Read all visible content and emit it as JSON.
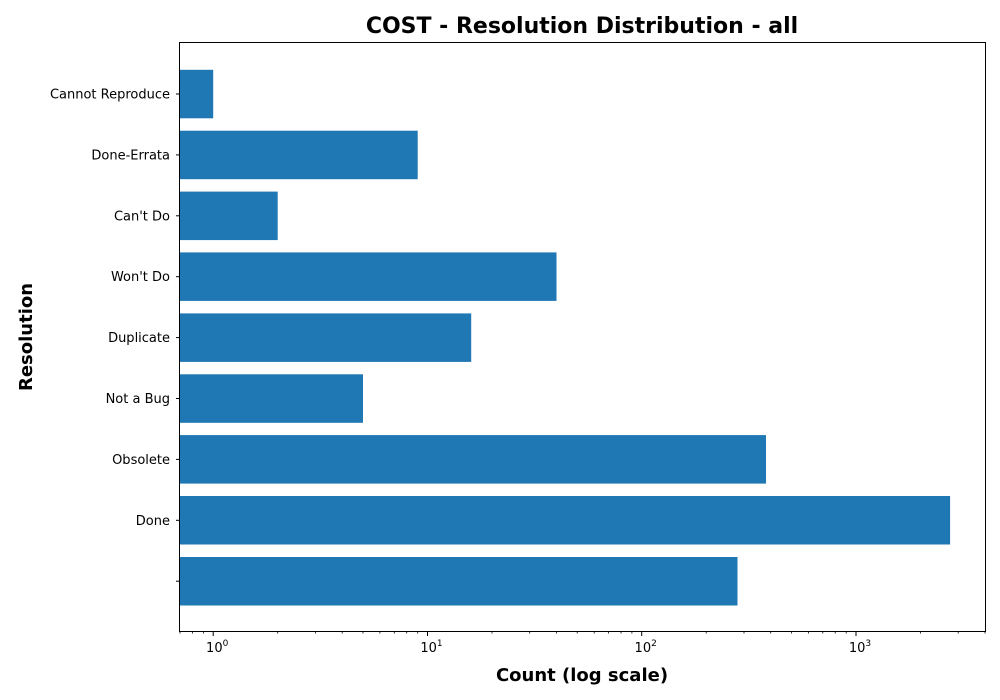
{
  "chart_data": {
    "type": "bar",
    "orientation": "horizontal",
    "title": "COST - Resolution Distribution - all",
    "xlabel": "Count (log scale)",
    "ylabel": "Resolution",
    "x_scale": "log",
    "xlim": [
      0.7,
      4000
    ],
    "x_ticks": [
      {
        "base": "10",
        "exp": "0"
      },
      {
        "base": "10",
        "exp": "1"
      },
      {
        "base": "10",
        "exp": "2"
      },
      {
        "base": "10",
        "exp": "3"
      }
    ],
    "categories": [
      "Cannot Reproduce",
      "Done-Errata",
      "Can't Do",
      "Won't Do",
      "Duplicate",
      "Not a Bug",
      "Obsolete",
      "Done",
      ""
    ],
    "values": [
      1,
      9,
      2,
      40,
      16,
      5,
      380,
      2750,
      280
    ],
    "bar_color": "#1f77b4",
    "grid": false,
    "legend": "none"
  }
}
